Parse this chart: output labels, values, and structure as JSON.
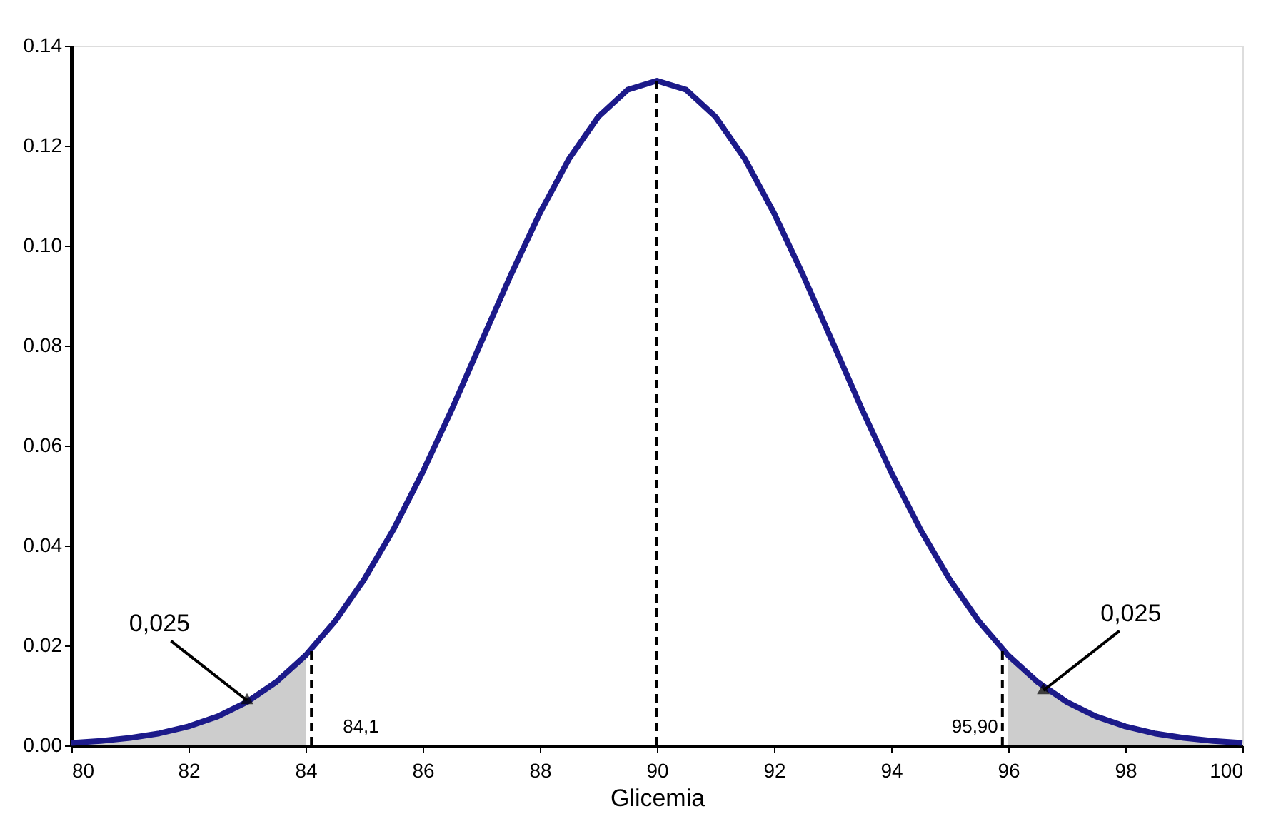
{
  "chart_data": {
    "type": "line",
    "xlabel": "Glicemia",
    "xlim": [
      80,
      100
    ],
    "xticks": [
      80,
      82,
      84,
      86,
      88,
      90,
      92,
      94,
      96,
      98,
      100
    ],
    "ylim": [
      0,
      0.14
    ],
    "yticks": [
      {
        "value": 0,
        "label": "0.00"
      },
      {
        "value": 0.02,
        "label": "0.02"
      },
      {
        "value": 0.04,
        "label": "0.04"
      },
      {
        "value": 0.06,
        "label": "0.06"
      },
      {
        "value": 0.08,
        "label": "0.08"
      },
      {
        "value": 0.1,
        "label": "0.10"
      },
      {
        "value": 0.12,
        "label": "0.12"
      },
      {
        "value": 0.14,
        "label": "0.14"
      }
    ],
    "grid": false,
    "series": [
      {
        "type": "area",
        "color": "#c8c8c8",
        "x": [
          80,
          80.5,
          81,
          81.5,
          82,
          82.5,
          83,
          83.5,
          84
        ],
        "values": [
          0.0005,
          0.0009,
          0.0015,
          0.0024,
          0.0038,
          0.0058,
          0.0087,
          0.0127,
          0.018
        ]
      },
      {
        "type": "area",
        "color": "#c8c8c8",
        "x": [
          96,
          96.5,
          97,
          97.5,
          98,
          98.5,
          99,
          99.5,
          100
        ],
        "values": [
          0.018,
          0.0127,
          0.0087,
          0.0058,
          0.0038,
          0.0024,
          0.0015,
          0.0009,
          0.0005
        ]
      },
      {
        "color": "#1c1a8a",
        "x": [
          80,
          80.5,
          81,
          81.5,
          82,
          82.5,
          83,
          83.5,
          84,
          84.5,
          85,
          85.5,
          86,
          86.5,
          87,
          87.5,
          88,
          88.5,
          89,
          89.5,
          90,
          90.5,
          91,
          91.5,
          92,
          92.5,
          93,
          93.5,
          94,
          94.5,
          95,
          95.5,
          96,
          96.5,
          97,
          97.5,
          98,
          98.5,
          99,
          99.5,
          100
        ],
        "values": [
          0.0005,
          0.0009,
          0.0015,
          0.0024,
          0.0038,
          0.0058,
          0.0087,
          0.0127,
          0.018,
          0.0248,
          0.0332,
          0.0432,
          0.0547,
          0.0673,
          0.0807,
          0.094,
          0.1065,
          0.1174,
          0.1258,
          0.1312,
          0.133,
          0.1312,
          0.1258,
          0.1174,
          0.1065,
          0.094,
          0.0807,
          0.0673,
          0.0547,
          0.0432,
          0.0332,
          0.0248,
          0.018,
          0.0127,
          0.0087,
          0.0058,
          0.0038,
          0.0024,
          0.0015,
          0.0009,
          0.0005
        ]
      }
    ],
    "ref_lines": [
      {
        "axis": "x",
        "value": 84.1,
        "label": "84,1",
        "line_style": "dashed"
      },
      {
        "axis": "x",
        "value": 90,
        "line_style": "dashed"
      },
      {
        "axis": "x",
        "value": 95.9,
        "label": "95,90",
        "line_style": "dashed"
      }
    ],
    "annotations": [
      {
        "text": "0,025",
        "x": 83,
        "y": 0.009
      },
      {
        "text": "0,025",
        "x": 96.6,
        "y": 0.011
      }
    ]
  }
}
